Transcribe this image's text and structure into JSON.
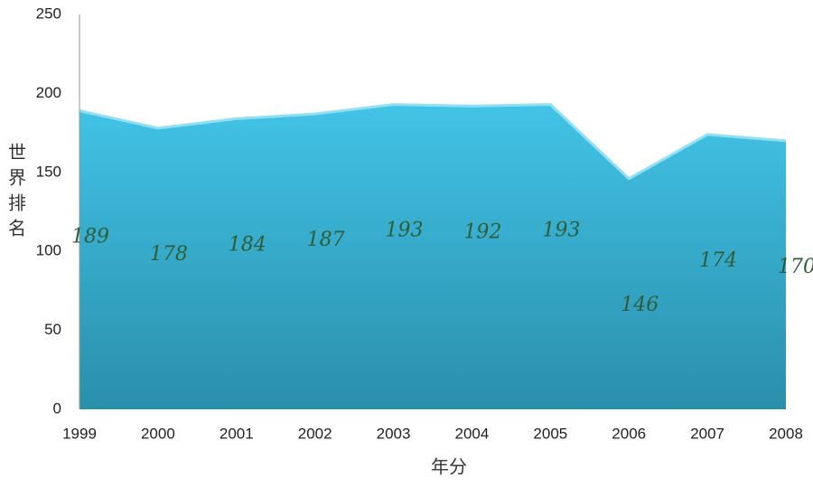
{
  "chart_data": {
    "type": "area",
    "categories": [
      "1999",
      "2000",
      "2001",
      "2002",
      "2003",
      "2004",
      "2005",
      "2006",
      "2007",
      "2008"
    ],
    "values": [
      189,
      178,
      184,
      187,
      193,
      192,
      193,
      146,
      174,
      170
    ],
    "color": "#3ab7d8",
    "ylim": [
      0,
      250
    ],
    "yticks": [
      0,
      50,
      100,
      150,
      200,
      250
    ],
    "y_label": "世界排名",
    "x_label": "年分",
    "grid": false
  }
}
